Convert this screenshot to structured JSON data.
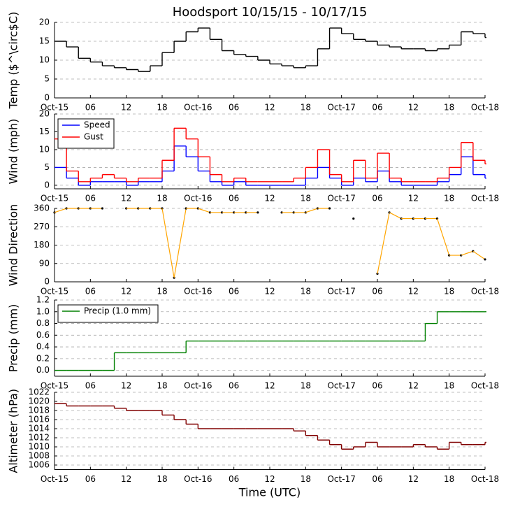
{
  "chart_data": [
    {
      "type": "line",
      "title": "Hoodsport 10/15/15 - 10/17/15",
      "ylabel": "Temp ($^\\circ$C)",
      "x": [
        0,
        2,
        4,
        6,
        8,
        10,
        12,
        14,
        16,
        18,
        20,
        22,
        24,
        26,
        28,
        30,
        32,
        34,
        36,
        38,
        40,
        42,
        44,
        46,
        48,
        50,
        52,
        54,
        56,
        58,
        60,
        62,
        64,
        66,
        68,
        70,
        72
      ],
      "xlim": [
        0,
        72
      ],
      "xticks": [
        {
          "value": 0,
          "label": "Oct-15"
        },
        {
          "value": 6,
          "label": "06"
        },
        12,
        18,
        {
          "value": 24,
          "label": "Oct-16"
        },
        {
          "value": 30,
          "label": "06"
        },
        {
          "value": 36,
          "label": "12"
        },
        {
          "value": 42,
          "label": "18"
        },
        {
          "value": 48,
          "label": "Oct-17"
        },
        {
          "value": 54,
          "label": "06"
        },
        {
          "value": 60,
          "label": "12"
        },
        {
          "value": 66,
          "label": "18"
        },
        {
          "value": 72,
          "label": "Oct-18"
        }
      ],
      "ylim": [
        0,
        20
      ],
      "yticks": [
        0,
        5,
        10,
        15,
        20
      ],
      "grid": true,
      "series": [
        {
          "color": "#000000",
          "values": [
            15,
            13.5,
            10.5,
            9.5,
            8.5,
            8,
            7.5,
            7,
            8.5,
            12,
            15,
            17.5,
            18.5,
            15.5,
            12.5,
            11.5,
            11,
            10,
            9,
            8.5,
            8,
            8.5,
            13,
            18.5,
            17,
            15.5,
            15,
            14,
            13.5,
            13,
            13,
            12.5,
            13,
            14,
            17.5,
            17,
            16
          ]
        }
      ]
    },
    {
      "type": "line",
      "ylabel": "Wind (mph)",
      "x": [
        0,
        2,
        4,
        6,
        8,
        10,
        12,
        14,
        16,
        18,
        20,
        22,
        24,
        26,
        28,
        30,
        32,
        34,
        36,
        38,
        40,
        42,
        44,
        46,
        48,
        50,
        52,
        54,
        56,
        58,
        60,
        62,
        64,
        66,
        68,
        70,
        72
      ],
      "xlim": [
        0,
        72
      ],
      "xticks": [
        {
          "value": 0,
          "label": "Oct-15"
        },
        {
          "value": 6,
          "label": "06"
        },
        12,
        18,
        {
          "value": 24,
          "label": "Oct-16"
        },
        {
          "value": 30,
          "label": "06"
        },
        {
          "value": 36,
          "label": "12"
        },
        {
          "value": 42,
          "label": "18"
        },
        {
          "value": 48,
          "label": "Oct-17"
        },
        {
          "value": 54,
          "label": "06"
        },
        {
          "value": 60,
          "label": "12"
        },
        {
          "value": 66,
          "label": "18"
        },
        {
          "value": 72,
          "label": "Oct-18"
        }
      ],
      "ylim": [
        -1,
        20
      ],
      "yticks": [
        0,
        5,
        10,
        15,
        20
      ],
      "grid": true,
      "legend": "upper left",
      "series": [
        {
          "name": "Speed",
          "color": "#0000ff",
          "values": [
            5,
            2,
            0,
            1,
            1,
            1,
            0,
            1,
            1,
            4,
            11,
            8,
            4,
            1,
            0,
            1,
            0,
            0,
            0,
            0,
            0,
            2,
            5,
            2,
            0,
            2,
            1,
            4,
            1,
            0,
            0,
            0,
            1,
            3,
            8,
            3,
            2
          ]
        },
        {
          "name": "Gust",
          "color": "#ff0000",
          "values": [
            13,
            4,
            1,
            2,
            3,
            2,
            1,
            2,
            2,
            7,
            16,
            13,
            8,
            3,
            1,
            2,
            1,
            1,
            1,
            1,
            2,
            5,
            10,
            3,
            1,
            7,
            2,
            9,
            2,
            1,
            1,
            1,
            2,
            5,
            12,
            7,
            6
          ]
        }
      ]
    },
    {
      "type": "line",
      "ylabel": "Wind Direction",
      "x": [
        0,
        2,
        4,
        6,
        8,
        10,
        12,
        14,
        16,
        18,
        20,
        22,
        24,
        26,
        28,
        30,
        32,
        34,
        36,
        38,
        40,
        42,
        44,
        46,
        48,
        50,
        52,
        54,
        56,
        58,
        60,
        62,
        64,
        66,
        68,
        70,
        72
      ],
      "xlim": [
        0,
        72
      ],
      "xticks": [
        {
          "value": 0,
          "label": "Oct-15"
        },
        {
          "value": 6,
          "label": "06"
        },
        12,
        18,
        {
          "value": 24,
          "label": "Oct-16"
        },
        {
          "value": 30,
          "label": "06"
        },
        {
          "value": 36,
          "label": "12"
        },
        {
          "value": 42,
          "label": "18"
        },
        {
          "value": 48,
          "label": "Oct-17"
        },
        {
          "value": 54,
          "label": "06"
        },
        {
          "value": 60,
          "label": "12"
        },
        {
          "value": 66,
          "label": "18"
        },
        {
          "value": 72,
          "label": "Oct-18"
        }
      ],
      "ylim": [
        0,
        360
      ],
      "yticks": [
        0,
        90,
        180,
        270,
        360
      ],
      "grid": true,
      "series": [
        {
          "color": "#ffa500",
          "values": [
            340,
            360,
            360,
            360,
            360,
            null,
            360,
            360,
            360,
            360,
            20,
            360,
            360,
            340,
            340,
            340,
            340,
            340,
            null,
            340,
            340,
            340,
            360,
            360,
            null,
            310,
            null,
            40,
            340,
            310,
            310,
            310,
            310,
            130,
            130,
            150,
            110
          ]
        }
      ]
    },
    {
      "type": "line",
      "ylabel": "Precip (mm)",
      "x": [
        0,
        2,
        4,
        6,
        8,
        10,
        12,
        14,
        16,
        18,
        20,
        22,
        24,
        26,
        28,
        30,
        32,
        34,
        36,
        38,
        40,
        42,
        44,
        46,
        48,
        50,
        52,
        54,
        56,
        58,
        60,
        62,
        64,
        66,
        68,
        70,
        72
      ],
      "xlim": [
        0,
        72
      ],
      "xticks": [
        {
          "value": 0,
          "label": "Oct-15"
        },
        {
          "value": 6,
          "label": "06"
        },
        12,
        18,
        {
          "value": 24,
          "label": "Oct-16"
        },
        {
          "value": 30,
          "label": "06"
        },
        {
          "value": 36,
          "label": "12"
        },
        {
          "value": 42,
          "label": "18"
        },
        {
          "value": 48,
          "label": "Oct-17"
        },
        {
          "value": 54,
          "label": "06"
        },
        {
          "value": 60,
          "label": "12"
        },
        {
          "value": 66,
          "label": "18"
        },
        {
          "value": 72,
          "label": "Oct-18"
        }
      ],
      "ylim": [
        -0.1,
        1.2
      ],
      "yticks": [
        {
          "value": 0,
          "label": "0.0"
        },
        0.2,
        0.4,
        0.6,
        0.8,
        {
          "value": 1,
          "label": "1.0"
        },
        1.2
      ],
      "grid": true,
      "legend": "upper left",
      "series": [
        {
          "name": "Precip (1.0 mm)",
          "color": "#008000",
          "values": [
            0,
            0,
            0,
            0,
            0,
            0.3,
            0.3,
            0.3,
            0.3,
            0.3,
            0.3,
            0.5,
            0.5,
            0.5,
            0.5,
            0.5,
            0.5,
            0.5,
            0.5,
            0.5,
            0.5,
            0.5,
            0.5,
            0.5,
            0.5,
            0.5,
            0.5,
            0.5,
            0.5,
            0.5,
            0.5,
            0.8,
            1,
            1,
            1,
            1,
            1
          ]
        }
      ]
    },
    {
      "type": "line",
      "ylabel": "Altimeter (hPa)",
      "xlabel": "Time (UTC)",
      "x": [
        0,
        2,
        4,
        6,
        8,
        10,
        12,
        14,
        16,
        18,
        20,
        22,
        24,
        26,
        28,
        30,
        32,
        34,
        36,
        38,
        40,
        42,
        44,
        46,
        48,
        50,
        52,
        54,
        56,
        58,
        60,
        62,
        64,
        66,
        68,
        70,
        72
      ],
      "xlim": [
        0,
        72
      ],
      "xticks": [
        {
          "value": 0,
          "label": "Oct-15"
        },
        {
          "value": 6,
          "label": "06"
        },
        12,
        18,
        {
          "value": 24,
          "label": "Oct-16"
        },
        {
          "value": 30,
          "label": "06"
        },
        {
          "value": 36,
          "label": "12"
        },
        {
          "value": 42,
          "label": "18"
        },
        {
          "value": 48,
          "label": "Oct-17"
        },
        {
          "value": 54,
          "label": "06"
        },
        {
          "value": 60,
          "label": "12"
        },
        {
          "value": 66,
          "label": "18"
        },
        {
          "value": 72,
          "label": "Oct-18"
        }
      ],
      "ylim": [
        1005,
        1022
      ],
      "yticks": [
        1006,
        1008,
        1010,
        1012,
        1014,
        1016,
        1018,
        1020,
        1022
      ],
      "grid": true,
      "series": [
        {
          "color": "#800000",
          "values": [
            1019.5,
            1019,
            1019,
            1019,
            1019,
            1018.5,
            1018,
            1018,
            1018,
            1017,
            1016,
            1015,
            1014,
            1014,
            1014,
            1014,
            1014,
            1014,
            1014,
            1014,
            1013.5,
            1012.5,
            1011.5,
            1010.5,
            1009.5,
            1010,
            1011,
            1010,
            1010,
            1010,
            1010.5,
            1010,
            1009.5,
            1011,
            1010.5,
            1010.5,
            1011
          ]
        }
      ]
    }
  ]
}
